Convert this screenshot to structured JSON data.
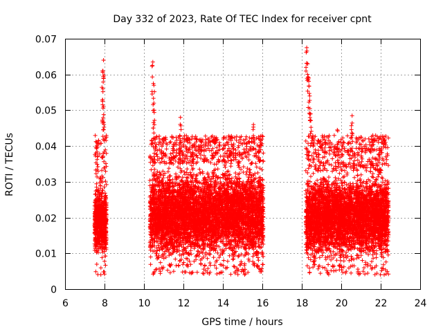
{
  "chart_data": {
    "type": "scatter",
    "title": "Day 332 of 2023, Rate Of TEC Index for receiver cpnt",
    "xlabel": "GPS time / hours",
    "ylabel": "ROTI / TECUs",
    "xlim": [
      6,
      24
    ],
    "ylim": [
      0,
      0.07
    ],
    "xticks": [
      6,
      8,
      10,
      12,
      14,
      16,
      18,
      20,
      22,
      24
    ],
    "xtick_labels": [
      "6",
      "8",
      "10",
      "12",
      "14",
      "16",
      "18",
      "20",
      "22",
      "24"
    ],
    "yticks": [
      0,
      0.01,
      0.02,
      0.03,
      0.04,
      0.05,
      0.06,
      0.07
    ],
    "ytick_labels": [
      "0",
      "0.01",
      "0.02",
      "0.03",
      "0.04",
      "0.05",
      "0.06",
      "0.07"
    ],
    "grid": true,
    "marker": "+",
    "color": "#ff0000",
    "series": [
      {
        "name": "ROTI",
        "segments": [
          {
            "x_range": [
              7.5,
              8.1
            ],
            "typical_range": [
              0.008,
              0.03
            ],
            "max": 0.064,
            "density": 700
          },
          {
            "x_range": [
              10.3,
              16.05
            ],
            "typical_range": [
              0.007,
              0.035
            ],
            "max": 0.0635,
            "density": 5500
          },
          {
            "x_range": [
              18.2,
              22.4
            ],
            "typical_range": [
              0.007,
              0.033
            ],
            "max": 0.0675,
            "density": 4200
          }
        ],
        "peaks": [
          {
            "x": 7.95,
            "y": 0.064
          },
          {
            "x": 7.9,
            "y": 0.061
          },
          {
            "x": 7.92,
            "y": 0.056
          },
          {
            "x": 7.95,
            "y": 0.051
          },
          {
            "x": 10.45,
            "y": 0.0635
          },
          {
            "x": 10.5,
            "y": 0.057
          },
          {
            "x": 10.5,
            "y": 0.052
          },
          {
            "x": 11.85,
            "y": 0.048
          },
          {
            "x": 15.55,
            "y": 0.046
          },
          {
            "x": 18.25,
            "y": 0.0675
          },
          {
            "x": 18.3,
            "y": 0.063
          },
          {
            "x": 18.35,
            "y": 0.059
          },
          {
            "x": 18.4,
            "y": 0.054
          },
          {
            "x": 18.45,
            "y": 0.049
          },
          {
            "x": 20.55,
            "y": 0.0485
          },
          {
            "x": 19.8,
            "y": 0.0445
          },
          {
            "x": 21.6,
            "y": 0.043
          }
        ]
      }
    ]
  }
}
